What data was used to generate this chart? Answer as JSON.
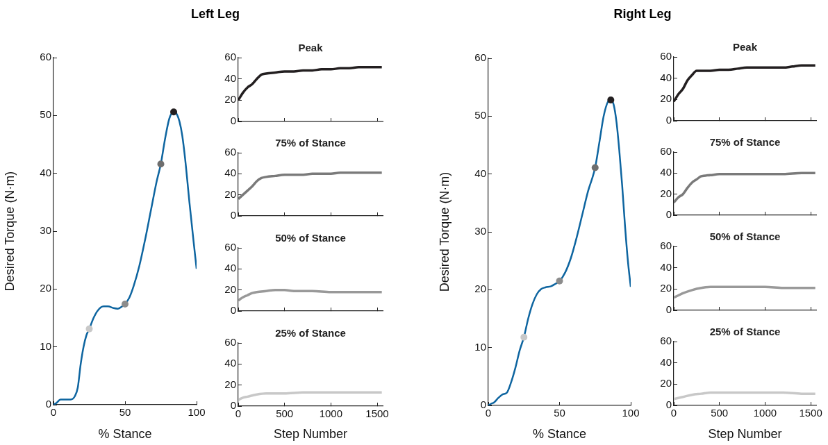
{
  "chart_data": [
    {
      "type": "line",
      "title": "Left Leg",
      "xlabel": "% Stance",
      "ylabel": "Desired Torque (N·m)",
      "xlim": [
        0,
        100
      ],
      "xticks": [
        0,
        50,
        100
      ],
      "ylim": [
        0,
        60
      ],
      "yticks": [
        0,
        10,
        20,
        30,
        40,
        50,
        60
      ],
      "series": [
        {
          "type": "line",
          "color": "#0e65a0",
          "x": [
            0,
            2,
            5,
            8,
            12,
            15,
            17,
            19,
            21,
            23,
            25,
            28,
            31,
            35,
            38,
            42,
            45,
            48,
            50,
            53,
            56,
            60,
            64,
            68,
            72,
            75,
            78,
            81,
            84,
            86,
            88,
            90,
            92,
            95,
            98,
            100
          ],
          "values": [
            0,
            0.3,
            0.9,
            0.9,
            0.9,
            1.5,
            3,
            7,
            10,
            12,
            13.1,
            15,
            16.3,
            17,
            17,
            16.7,
            16.6,
            17,
            17.4,
            18.5,
            20.5,
            24,
            28.5,
            33.5,
            38.5,
            41.6,
            46,
            49.5,
            50.6,
            50.3,
            49,
            46.5,
            42.5,
            35,
            28,
            23.5
          ]
        },
        {
          "type": "scatter",
          "color": "#c8c8c8",
          "x": [
            25
          ],
          "values": [
            13.1
          ]
        },
        {
          "type": "scatter",
          "color": "#8c8c8c",
          "x": [
            50
          ],
          "values": [
            17.4
          ]
        },
        {
          "type": "scatter",
          "color": "#6e6e6e",
          "x": [
            75
          ],
          "values": [
            41.6
          ]
        },
        {
          "type": "scatter",
          "color": "#231f20",
          "x": [
            84
          ],
          "values": [
            50.6
          ]
        }
      ]
    },
    {
      "type": "line",
      "title": "Peak",
      "xlim": [
        0,
        1560
      ],
      "xticks": [
        0,
        500,
        1000,
        1500
      ],
      "ylim": [
        0,
        60
      ],
      "yticks": [
        0,
        20,
        40,
        60
      ],
      "tick_labels": "y",
      "series": [
        {
          "type": "line",
          "color": "#231f20",
          "x": [
            0,
            50,
            100,
            150,
            200,
            250,
            300,
            400,
            500,
            600,
            700,
            800,
            900,
            1000,
            1100,
            1200,
            1300,
            1400,
            1500,
            1550
          ],
          "values": [
            20,
            27,
            32,
            35,
            40,
            44,
            45,
            46,
            47,
            47,
            48,
            48,
            49,
            49,
            50,
            50,
            51,
            51,
            51,
            51
          ]
        }
      ]
    },
    {
      "type": "line",
      "title": "75% of Stance",
      "xlim": [
        0,
        1560
      ],
      "xticks": [
        0,
        500,
        1000,
        1500
      ],
      "ylim": [
        0,
        60
      ],
      "yticks": [
        0,
        20,
        40,
        60
      ],
      "tick_labels": "y",
      "series": [
        {
          "type": "line",
          "color": "#7a7a7a",
          "x": [
            0,
            50,
            100,
            150,
            200,
            250,
            300,
            400,
            500,
            600,
            700,
            800,
            900,
            1000,
            1100,
            1200,
            1300,
            1400,
            1500,
            1550
          ],
          "values": [
            16,
            20,
            24,
            28,
            33,
            36,
            37,
            38,
            39,
            39,
            39,
            40,
            40,
            40,
            41,
            41,
            41,
            41,
            41,
            41
          ]
        }
      ]
    },
    {
      "type": "line",
      "title": "50% of Stance",
      "xlim": [
        0,
        1560
      ],
      "xticks": [
        0,
        500,
        1000,
        1500
      ],
      "ylim": [
        0,
        60
      ],
      "yticks": [
        0,
        20,
        40,
        60
      ],
      "tick_labels": "y",
      "series": [
        {
          "type": "line",
          "color": "#999999",
          "x": [
            0,
            50,
            100,
            150,
            200,
            300,
            400,
            500,
            600,
            800,
            1000,
            1200,
            1400,
            1550
          ],
          "values": [
            10,
            13,
            15,
            17,
            18,
            19,
            20,
            20,
            19,
            19,
            18,
            18,
            18,
            18
          ]
        }
      ]
    },
    {
      "type": "line",
      "title": "25% of Stance",
      "xlabel": "Step Number",
      "xlim": [
        0,
        1560
      ],
      "xticks": [
        0,
        500,
        1000,
        1500
      ],
      "ylim": [
        0,
        60
      ],
      "yticks": [
        0,
        20,
        40,
        60
      ],
      "series": [
        {
          "type": "line",
          "color": "#c8c8c8",
          "x": [
            0,
            50,
            100,
            200,
            300,
            500,
            700,
            900,
            1100,
            1300,
            1550
          ],
          "values": [
            6,
            8,
            9,
            11,
            12,
            12,
            13,
            13,
            13,
            13,
            13
          ]
        }
      ]
    },
    {
      "type": "line",
      "title": "Right Leg",
      "xlabel": "% Stance",
      "ylabel": "Desired Torque (N·m)",
      "xlim": [
        0,
        100
      ],
      "xticks": [
        0,
        50,
        100
      ],
      "ylim": [
        0,
        60
      ],
      "yticks": [
        0,
        10,
        20,
        30,
        40,
        50,
        60
      ],
      "series": [
        {
          "type": "line",
          "color": "#0e65a0",
          "x": [
            0,
            2,
            4,
            7,
            10,
            13,
            16,
            19,
            22,
            25,
            28,
            31,
            34,
            37,
            40,
            44,
            47,
            50,
            54,
            58,
            62,
            66,
            70,
            75,
            78,
            81,
            84,
            86,
            88,
            90,
            92,
            94,
            96,
            98,
            100
          ],
          "values": [
            0,
            0.3,
            0.5,
            1.3,
            1.9,
            2.2,
            4,
            6.5,
            9.5,
            11.8,
            15,
            17.5,
            19.2,
            20.1,
            20.4,
            20.6,
            21,
            21.5,
            23,
            25.5,
            29,
            33,
            37,
            41.1,
            45.5,
            50,
            52.5,
            52.8,
            52,
            49,
            44,
            38,
            31,
            25,
            20.5
          ]
        },
        {
          "type": "scatter",
          "color": "#c8c8c8",
          "x": [
            25
          ],
          "values": [
            11.8
          ]
        },
        {
          "type": "scatter",
          "color": "#8c8c8c",
          "x": [
            50
          ],
          "values": [
            21.5
          ]
        },
        {
          "type": "scatter",
          "color": "#6e6e6e",
          "x": [
            75
          ],
          "values": [
            41.1
          ]
        },
        {
          "type": "scatter",
          "color": "#231f20",
          "x": [
            86
          ],
          "values": [
            52.8
          ]
        }
      ]
    },
    {
      "type": "line",
      "title": "Peak",
      "xlim": [
        0,
        1560
      ],
      "xticks": [
        0,
        500,
        1000,
        1500
      ],
      "ylim": [
        0,
        60
      ],
      "yticks": [
        0,
        20,
        40,
        60
      ],
      "tick_labels": "y",
      "series": [
        {
          "type": "line",
          "color": "#231f20",
          "x": [
            0,
            50,
            100,
            150,
            200,
            250,
            300,
            400,
            500,
            600,
            700,
            800,
            900,
            1000,
            1100,
            1200,
            1300,
            1400,
            1500,
            1550
          ],
          "values": [
            18,
            25,
            30,
            38,
            43,
            47,
            47,
            47,
            48,
            48,
            49,
            50,
            50,
            50,
            50,
            50,
            51,
            52,
            52,
            52
          ]
        }
      ]
    },
    {
      "type": "line",
      "title": "75% of Stance",
      "xlim": [
        0,
        1560
      ],
      "xticks": [
        0,
        500,
        1000,
        1500
      ],
      "ylim": [
        0,
        60
      ],
      "yticks": [
        0,
        20,
        40,
        60
      ],
      "tick_labels": "y",
      "series": [
        {
          "type": "line",
          "color": "#7a7a7a",
          "x": [
            0,
            50,
            100,
            150,
            200,
            250,
            300,
            400,
            500,
            600,
            800,
            1000,
            1200,
            1400,
            1550
          ],
          "values": [
            12,
            17,
            20,
            26,
            31,
            34,
            37,
            38,
            39,
            39,
            39,
            39,
            39,
            40,
            40
          ]
        }
      ]
    },
    {
      "type": "line",
      "title": "50% of Stance",
      "xlim": [
        0,
        1560
      ],
      "xticks": [
        0,
        500,
        1000,
        1500
      ],
      "ylim": [
        0,
        60
      ],
      "yticks": [
        0,
        20,
        40,
        60
      ],
      "tick_labels": "y",
      "series": [
        {
          "type": "line",
          "color": "#999999",
          "x": [
            0,
            50,
            100,
            200,
            300,
            400,
            600,
            800,
            1000,
            1200,
            1400,
            1550
          ],
          "values": [
            12,
            14,
            16,
            19,
            21,
            22,
            22,
            22,
            22,
            21,
            21,
            21
          ]
        }
      ]
    },
    {
      "type": "line",
      "title": "25% of Stance",
      "xlabel": "Step Number",
      "xlim": [
        0,
        1560
      ],
      "xticks": [
        0,
        500,
        1000,
        1500
      ],
      "ylim": [
        0,
        60
      ],
      "yticks": [
        0,
        20,
        40,
        60
      ],
      "series": [
        {
          "type": "line",
          "color": "#c8c8c8",
          "x": [
            0,
            50,
            100,
            200,
            300,
            400,
            600,
            800,
            1000,
            1200,
            1400,
            1550
          ],
          "values": [
            6,
            7,
            8,
            10,
            11,
            12,
            12,
            12,
            12,
            12,
            11,
            11
          ]
        }
      ]
    }
  ]
}
